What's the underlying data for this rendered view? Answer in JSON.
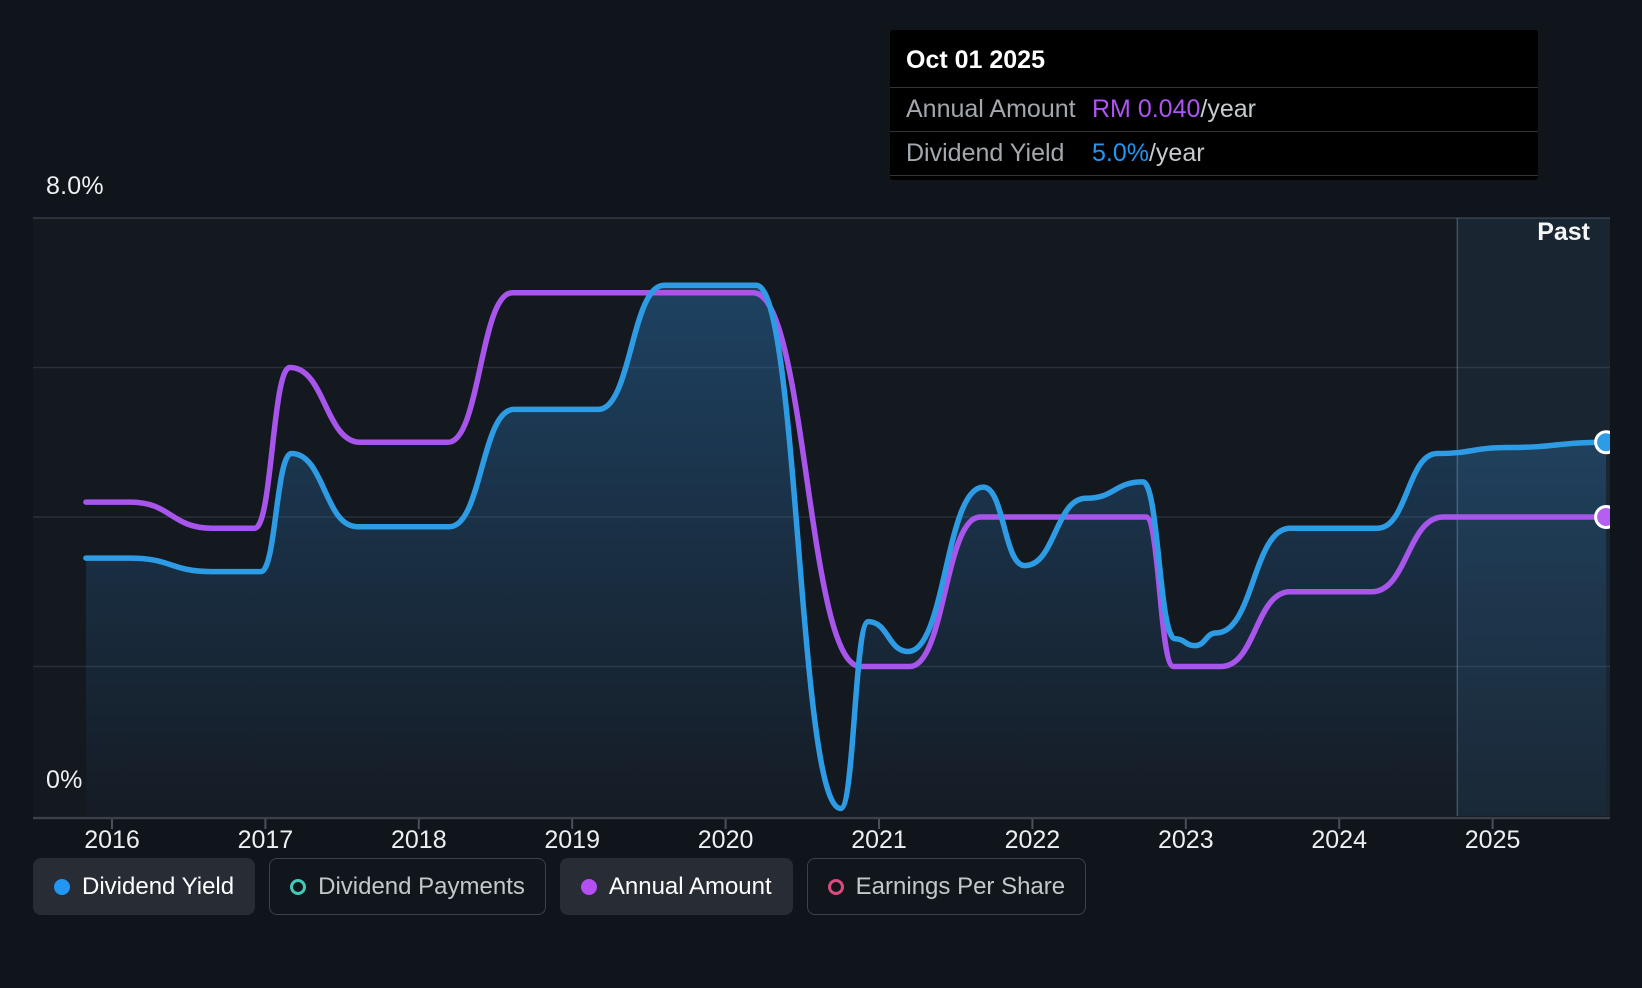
{
  "past_label": "Past",
  "axis": {
    "y_top_label": "8.0%",
    "y_bottom_label": "0%",
    "years": [
      "2016",
      "2017",
      "2018",
      "2019",
      "2020",
      "2021",
      "2022",
      "2023",
      "2024",
      "2025"
    ]
  },
  "tooltip": {
    "date": "Oct 01 2025",
    "rows": [
      {
        "label": "Annual Amount",
        "value": "RM 0.040",
        "suffix": "/year",
        "color": "#ae54f3"
      },
      {
        "label": "Dividend Yield",
        "value": "5.0%",
        "suffix": "/year",
        "color": "#2196f3"
      }
    ]
  },
  "legend": [
    {
      "label": "Dividend Yield",
      "marker": "dot",
      "color": "#2196f3",
      "active": true
    },
    {
      "label": "Dividend Payments",
      "marker": "ring",
      "color": "#45c8b8",
      "active": false
    },
    {
      "label": "Annual Amount",
      "marker": "dot",
      "color": "#b44ff2",
      "active": true
    },
    {
      "label": "Earnings Per Share",
      "marker": "ring",
      "color": "#db4a81",
      "active": false
    }
  ],
  "colors": {
    "page_bg": "#10141b",
    "plot_bg": "#14181f",
    "grid": "rgba(140,165,190,0.17)",
    "grid_top": "rgba(140,165,190,0.28)",
    "axis_line": "#3a414b",
    "tick": "#4a515b",
    "yield_line": "#2d9ce5",
    "yield_marker": "#2d9ce5",
    "amount_line": "#a855eb",
    "amount_marker": "#b45ff0",
    "area_top": "rgba(45,130,200,0.40)",
    "area_bottom": "rgba(45,130,200,0.03)",
    "past_fill": "rgba(80,155,220,0.10)",
    "past_line": "rgba(130,175,220,0.35)",
    "marker_stroke": "#ffffff"
  },
  "chart_data": {
    "type": "area",
    "title": "Dividend yield and annual dividend amount over time",
    "x_range": [
      2015.83,
      2025.78
    ],
    "y_axis": {
      "unit": "%",
      "min": 0,
      "max": 8,
      "gridline_step": 2,
      "labeled_ticks": [
        8,
        0
      ]
    },
    "past_region_start": 2024.77,
    "tooltip_point": {
      "date": "Oct 01 2025",
      "annual_amount_rm": 0.04,
      "dividend_yield_pct": 5.0
    },
    "amount_axis_mapping": "RM 0.010 per 1% on shared axis",
    "series": [
      {
        "name": "Dividend Yield",
        "unit": "%",
        "color": "#2d9ce5",
        "area": true,
        "scale": 1,
        "points": [
          [
            2015.83,
            3.45
          ],
          [
            2016.12,
            3.45
          ],
          [
            2016.65,
            3.27
          ],
          [
            2016.97,
            3.27
          ],
          [
            2017.17,
            4.85
          ],
          [
            2017.6,
            3.87
          ],
          [
            2018.2,
            3.87
          ],
          [
            2018.62,
            5.44
          ],
          [
            2019.17,
            5.44
          ],
          [
            2019.6,
            7.1
          ],
          [
            2020.2,
            7.1
          ],
          [
            2020.75,
            0.1
          ],
          [
            2020.93,
            2.6
          ],
          [
            2021.19,
            2.2
          ],
          [
            2021.68,
            4.4
          ],
          [
            2021.95,
            3.35
          ],
          [
            2022.35,
            4.25
          ],
          [
            2022.72,
            4.47
          ],
          [
            2022.93,
            2.37
          ],
          [
            2023.06,
            2.28
          ],
          [
            2023.2,
            2.45
          ],
          [
            2023.68,
            3.85
          ],
          [
            2024.25,
            3.85
          ],
          [
            2024.64,
            4.85
          ],
          [
            2025.1,
            4.93
          ],
          [
            2025.74,
            5.0
          ]
        ]
      },
      {
        "name": "Annual Amount",
        "unit": "RM",
        "color": "#a855eb",
        "area": false,
        "scale": 100,
        "points": [
          [
            2015.83,
            0.042
          ],
          [
            2016.12,
            0.042
          ],
          [
            2016.65,
            0.0385
          ],
          [
            2016.93,
            0.0385
          ],
          [
            2017.16,
            0.06
          ],
          [
            2017.62,
            0.05
          ],
          [
            2018.19,
            0.05
          ],
          [
            2018.61,
            0.07
          ],
          [
            2020.18,
            0.07
          ],
          [
            2020.88,
            0.02
          ],
          [
            2021.2,
            0.02
          ],
          [
            2021.66,
            0.04
          ],
          [
            2022.74,
            0.04
          ],
          [
            2022.92,
            0.02
          ],
          [
            2023.23,
            0.02
          ],
          [
            2023.68,
            0.03
          ],
          [
            2024.21,
            0.03
          ],
          [
            2024.68,
            0.04
          ],
          [
            2025.74,
            0.04
          ]
        ]
      }
    ]
  }
}
